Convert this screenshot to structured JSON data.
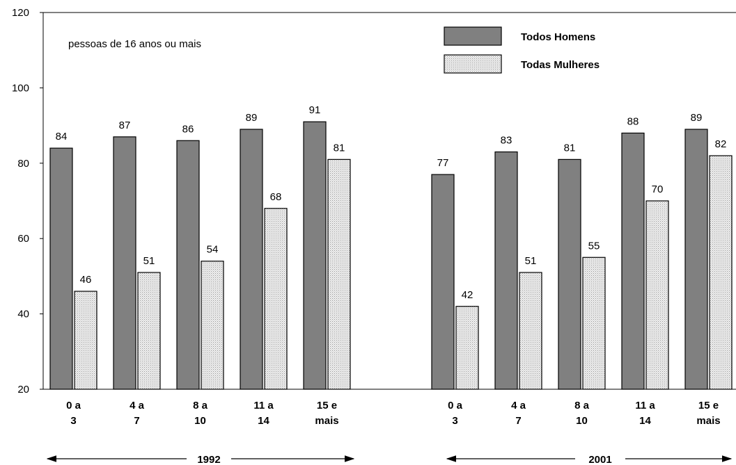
{
  "chart_data": {
    "type": "bar",
    "annotation": "pessoas de 16 anos ou mais",
    "ylim": [
      20,
      120
    ],
    "yticks": [
      20,
      40,
      60,
      80,
      100,
      120
    ],
    "grid": false,
    "legend_position": "top-right",
    "colors": {
      "Todos Homens": "#808080",
      "Todas Mulheres": "#e8e8e8"
    },
    "groups": [
      {
        "period": "1992",
        "categories": [
          "0 a 3",
          "4 a 7",
          "8 a 10",
          "11 a 14",
          "15 e mais"
        ],
        "series": [
          {
            "name": "Todos Homens",
            "values": [
              84,
              87,
              86,
              89,
              91
            ]
          },
          {
            "name": "Todas Mulheres",
            "values": [
              46,
              51,
              54,
              68,
              81
            ]
          }
        ]
      },
      {
        "period": "2001",
        "categories": [
          "0 a 3",
          "4 a 7",
          "8 a 10",
          "11 a 14",
          "15 e mais"
        ],
        "series": [
          {
            "name": "Todos Homens",
            "values": [
              77,
              83,
              81,
              88,
              89
            ]
          },
          {
            "name": "Todas Mulheres",
            "values": [
              42,
              51,
              55,
              70,
              82
            ]
          }
        ]
      }
    ]
  }
}
